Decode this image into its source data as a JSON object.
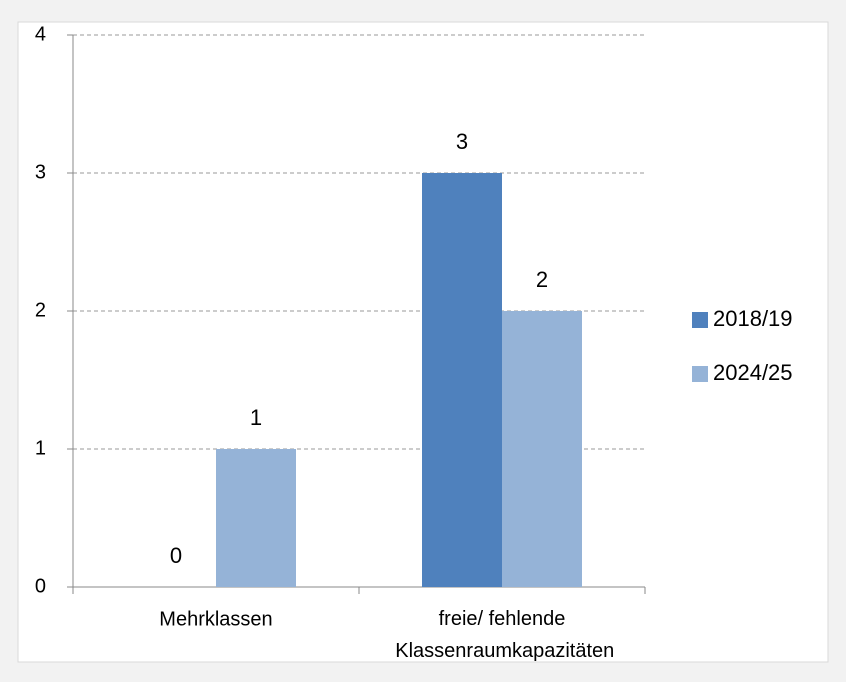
{
  "chart_data": {
    "type": "bar",
    "categories": [
      "Mehrklassen",
      "freie/ fehlende Klassenraumkapazitäten"
    ],
    "series": [
      {
        "name": "2018/19",
        "color": "#4f81bd",
        "values": [
          0,
          3
        ]
      },
      {
        "name": "2024/25",
        "color": "#95b3d7",
        "values": [
          1,
          2
        ]
      }
    ],
    "ylim": [
      0,
      4
    ],
    "yticks": [
      0,
      1,
      2,
      3,
      4
    ],
    "grid": true,
    "legend": "right"
  }
}
